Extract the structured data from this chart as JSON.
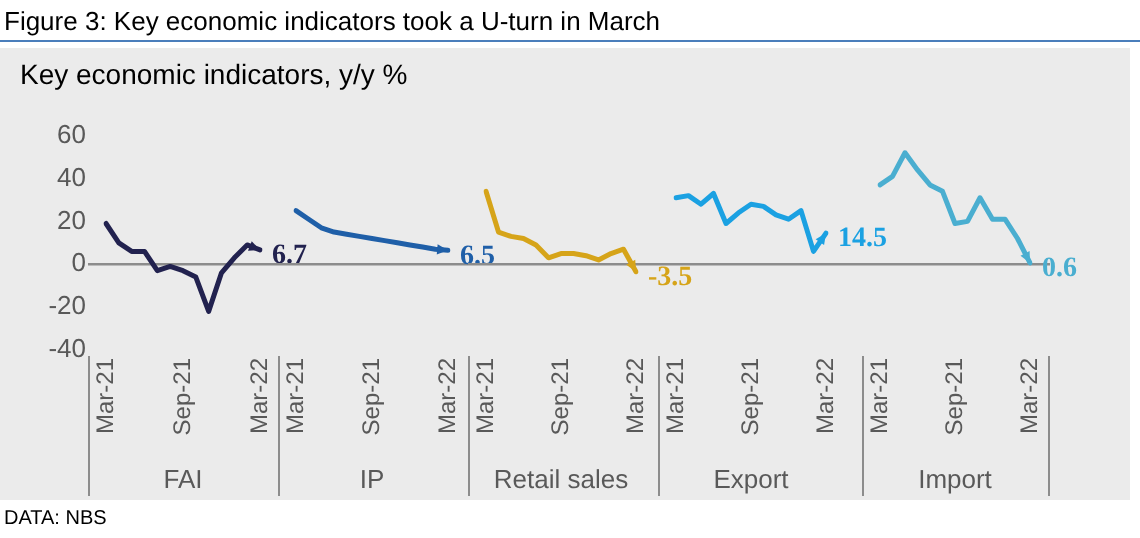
{
  "chart_data": [
    {
      "type": "line",
      "title": "Figure 3: Key economic indicators took a U-turn in March",
      "ylabel": "Key economic indicators, y/y %",
      "xlabel": "FAI",
      "annotations": [
        "DATA: NBS"
      ],
      "categories": [
        "Mar-21",
        null,
        null,
        null,
        null,
        null,
        "Sep-21",
        null,
        null,
        null,
        null,
        null,
        "Mar-22"
      ],
      "series": [
        {
          "color": "#22224f",
          "values": [
            19,
            10,
            6,
            6,
            -3,
            -1,
            -3,
            -6,
            -22,
            -4,
            3,
            9,
            6.7
          ],
          "value_labels": [
            null,
            null,
            null,
            null,
            null,
            null,
            null,
            null,
            null,
            null,
            null,
            null,
            "6.7"
          ]
        }
      ],
      "ylim": [
        -40,
        60
      ],
      "yticks": [
        -40,
        -20,
        0,
        20,
        40,
        60
      ],
      "ref_lines": [
        {
          "axis": "y",
          "value": 0,
          "color": "#8c8c8c"
        }
      ],
      "grid": false,
      "legend": false,
      "marker": "none",
      "line_style": "solid"
    },
    {
      "type": "line",
      "xlabel": "IP",
      "categories": [
        "Mar-21",
        null,
        null,
        null,
        null,
        null,
        "Sep-21",
        null,
        null,
        null,
        null,
        null,
        "Mar-22"
      ],
      "series": [
        {
          "color": "#1f5fa8",
          "values": [
            25,
            21,
            17,
            15,
            14,
            13,
            12,
            11,
            10,
            9,
            8,
            7,
            6.5
          ],
          "value_labels": [
            null,
            null,
            null,
            null,
            null,
            null,
            null,
            null,
            null,
            null,
            null,
            null,
            "6.5"
          ]
        }
      ],
      "ylim": [
        -40,
        60
      ],
      "yticks": [
        -40,
        -20,
        0,
        20,
        40,
        60
      ],
      "tick_labels": "x",
      "ref_lines": [
        {
          "axis": "y",
          "value": 0,
          "color": "#8c8c8c"
        }
      ],
      "grid": false,
      "legend": false,
      "marker": "none",
      "line_style": "solid"
    },
    {
      "type": "line",
      "xlabel": "Retail sales",
      "categories": [
        "Mar-21",
        null,
        null,
        null,
        null,
        null,
        "Sep-21",
        null,
        null,
        null,
        null,
        null,
        "Mar-22"
      ],
      "series": [
        {
          "color": "#d6a419",
          "values": [
            34,
            15,
            13,
            12,
            9,
            3,
            5,
            5,
            4,
            2,
            5,
            7,
            -3.5
          ],
          "value_labels": [
            null,
            null,
            null,
            null,
            null,
            null,
            null,
            null,
            null,
            null,
            null,
            null,
            "-3.5"
          ]
        }
      ],
      "ylim": [
        -40,
        60
      ],
      "yticks": [
        -40,
        -20,
        0,
        20,
        40,
        60
      ],
      "tick_labels": "x",
      "ref_lines": [
        {
          "axis": "y",
          "value": 0,
          "color": "#8c8c8c"
        }
      ],
      "grid": false,
      "legend": false,
      "marker": "none",
      "line_style": "solid"
    },
    {
      "type": "line",
      "xlabel": "Export",
      "categories": [
        "Mar-21",
        null,
        null,
        null,
        null,
        null,
        "Sep-21",
        null,
        null,
        null,
        null,
        null,
        "Mar-22"
      ],
      "series": [
        {
          "color": "#1ba1e2",
          "values": [
            31,
            32,
            28,
            33,
            19,
            24,
            28,
            27,
            23,
            21,
            25,
            6,
            14.5
          ],
          "value_labels": [
            null,
            null,
            null,
            null,
            null,
            null,
            null,
            null,
            null,
            null,
            null,
            null,
            "14.5"
          ]
        }
      ],
      "ylim": [
        -40,
        60
      ],
      "yticks": [
        -40,
        -20,
        0,
        20,
        40,
        60
      ],
      "tick_labels": "x",
      "ref_lines": [
        {
          "axis": "y",
          "value": 0,
          "color": "#8c8c8c"
        }
      ],
      "grid": false,
      "legend": false,
      "marker": "none",
      "line_style": "solid"
    },
    {
      "type": "line",
      "xlabel": "Import",
      "categories": [
        "Mar-21",
        null,
        null,
        null,
        null,
        null,
        "Sep-21",
        null,
        null,
        null,
        null,
        null,
        "Mar-22"
      ],
      "series": [
        {
          "color": "#4aaed0",
          "values": [
            37,
            41,
            52,
            44,
            37,
            34,
            19,
            20,
            31,
            21,
            21,
            12,
            0.6
          ],
          "value_labels": [
            null,
            null,
            null,
            null,
            null,
            null,
            null,
            null,
            null,
            null,
            null,
            null,
            "0.6"
          ]
        }
      ],
      "ylim": [
        -40,
        60
      ],
      "yticks": [
        -40,
        -20,
        0,
        20,
        40,
        60
      ],
      "tick_labels": "x",
      "ref_lines": [
        {
          "axis": "y",
          "value": 0,
          "color": "#8c8c8c"
        }
      ],
      "grid": false,
      "legend": false,
      "marker": "none",
      "line_style": "solid"
    }
  ]
}
